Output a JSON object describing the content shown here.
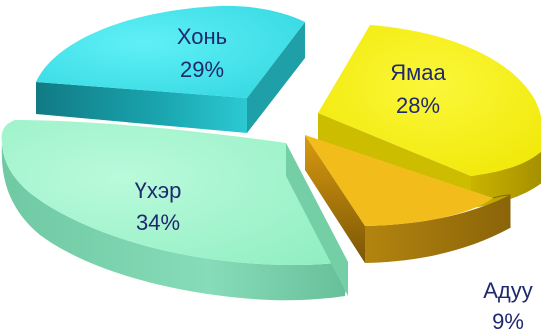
{
  "chart_data": {
    "type": "pie",
    "title": "",
    "slices": [
      {
        "label": "Хонь",
        "value": 29,
        "value_text": "29%",
        "color": "#3fdde8"
      },
      {
        "label": "Ямаа",
        "value": 28,
        "value_text": "28%",
        "color": "#f5f00a"
      },
      {
        "label": "Адуу",
        "value": 9,
        "value_text": "9%",
        "color": "#f2bd1a"
      },
      {
        "label": "Үхэр",
        "value": 34,
        "value_text": "34%",
        "color": "#9ff5cc"
      }
    ],
    "exploded": true,
    "three_d": true,
    "label_color": "#1f2a6e"
  }
}
